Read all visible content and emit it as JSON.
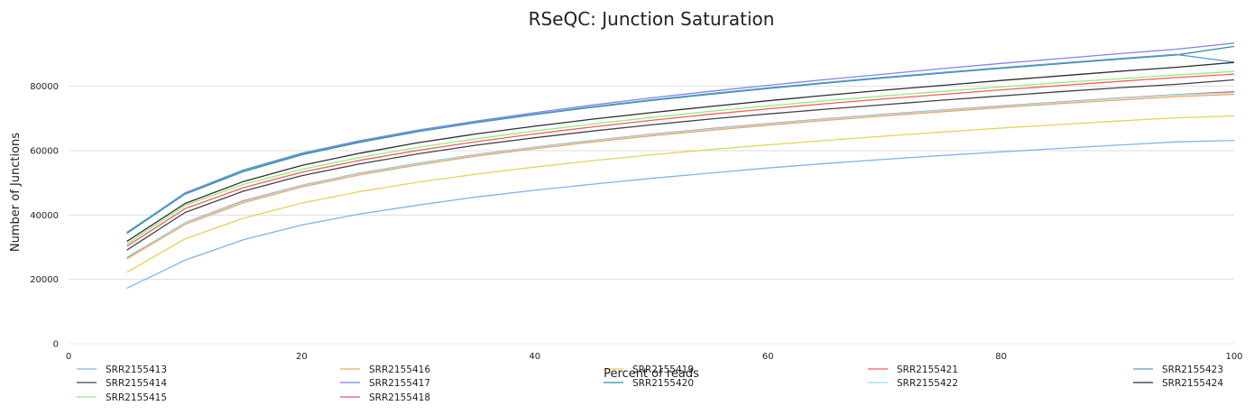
{
  "chart_data": {
    "type": "line",
    "title": "RSeQC: Junction Saturation",
    "xlabel": "Percent of reads",
    "ylabel": "Number of Junctions",
    "xlim": [
      0,
      100
    ],
    "ylim": [
      0,
      97000
    ],
    "x_ticks": [
      "0",
      "20",
      "40",
      "60",
      "80",
      "100"
    ],
    "y_ticks": [
      "0",
      "20000",
      "40000",
      "60000",
      "80000"
    ],
    "grid": "horizontal",
    "legend_position": "bottom",
    "x": [
      5,
      10,
      15,
      20,
      25,
      30,
      35,
      40,
      45,
      50,
      55,
      60,
      65,
      70,
      75,
      80,
      85,
      90,
      95,
      100
    ],
    "series": [
      {
        "name": "SRR2155413",
        "color": "#7cb5ec",
        "values": [
          17200,
          26000,
          32300,
          36900,
          40300,
          43100,
          45600,
          47700,
          49600,
          51400,
          53000,
          54600,
          56000,
          57300,
          58500,
          59600,
          60700,
          61700,
          62700,
          63200
        ]
      },
      {
        "name": "SRR2155414",
        "color": "#434348",
        "values": [
          29100,
          40800,
          47400,
          52200,
          55900,
          59000,
          61700,
          64000,
          66100,
          68000,
          69800,
          71400,
          72900,
          74300,
          75700,
          77000,
          78300,
          79500,
          80600,
          82000
        ]
      },
      {
        "name": "SRR2155415",
        "color": "#90ed7d",
        "values": [
          31000,
          43000,
          49500,
          54200,
          57900,
          61000,
          63700,
          66100,
          68300,
          70300,
          72200,
          73900,
          75500,
          77000,
          78400,
          79800,
          81100,
          82300,
          83500,
          84600
        ]
      },
      {
        "name": "SRR2155416",
        "color": "#f7a35c",
        "values": [
          26400,
          37100,
          43800,
          48700,
          52500,
          55600,
          58300,
          60600,
          62700,
          64600,
          66300,
          67900,
          69400,
          70800,
          72100,
          73400,
          74600,
          75700,
          76800,
          77500
        ]
      },
      {
        "name": "SRR2155417",
        "color": "#8085e9",
        "values": [
          34500,
          46900,
          54000,
          59200,
          63100,
          66400,
          69200,
          71800,
          74200,
          76400,
          78400,
          80300,
          82100,
          83800,
          85500,
          87100,
          88600,
          90100,
          91500,
          93400
        ]
      },
      {
        "name": "SRR2155418",
        "color": "#e4567b",
        "values": [
          26800,
          37600,
          44400,
          49200,
          53000,
          56100,
          58800,
          61100,
          63200,
          65100,
          66800,
          68400,
          69900,
          71300,
          72600,
          73900,
          75100,
          76300,
          77400,
          78300
        ]
      },
      {
        "name": "SRR2155419",
        "color": "#e4d354",
        "values": [
          22200,
          32600,
          39000,
          43700,
          47300,
          50200,
          52700,
          54900,
          56900,
          58700,
          60300,
          61800,
          63200,
          64500,
          65800,
          67000,
          68100,
          69200,
          70200,
          70800
        ]
      },
      {
        "name": "SRR2155420",
        "color": "#2b908f",
        "values": [
          34300,
          46500,
          53500,
          58700,
          62600,
          65900,
          68700,
          71200,
          73500,
          75600,
          77500,
          79300,
          81000,
          82600,
          84100,
          85600,
          87000,
          88400,
          89700,
          92400
        ]
      },
      {
        "name": "SRR2155421",
        "color": "#f45b5b",
        "values": [
          30300,
          42000,
          48500,
          53300,
          57000,
          60100,
          62800,
          65200,
          67400,
          69400,
          71300,
          73000,
          74600,
          76100,
          77500,
          78900,
          80200,
          81500,
          82700,
          83800
        ]
      },
      {
        "name": "SRR2155422",
        "color": "#91e8e1",
        "values": [
          26900,
          37500,
          44200,
          49100,
          52900,
          56000,
          58700,
          61000,
          63100,
          65000,
          66700,
          68300,
          69800,
          71200,
          72500,
          73800,
          75000,
          76200,
          77300,
          78000
        ]
      },
      {
        "name": "SRR2155423",
        "color": "#5a9ad3",
        "values": [
          34600,
          46700,
          53900,
          59000,
          62900,
          66100,
          68900,
          71400,
          73700,
          75800,
          77700,
          79500,
          81200,
          82800,
          84300,
          85800,
          87200,
          88600,
          89900,
          87500
        ]
      },
      {
        "name": "SRR2155424",
        "color": "#2e2e33",
        "values": [
          31800,
          43600,
          50400,
          55400,
          59200,
          62500,
          65200,
          67600,
          69800,
          71800,
          73700,
          75500,
          77200,
          78800,
          80300,
          81800,
          83200,
          84600,
          85900,
          87400
        ]
      }
    ]
  }
}
